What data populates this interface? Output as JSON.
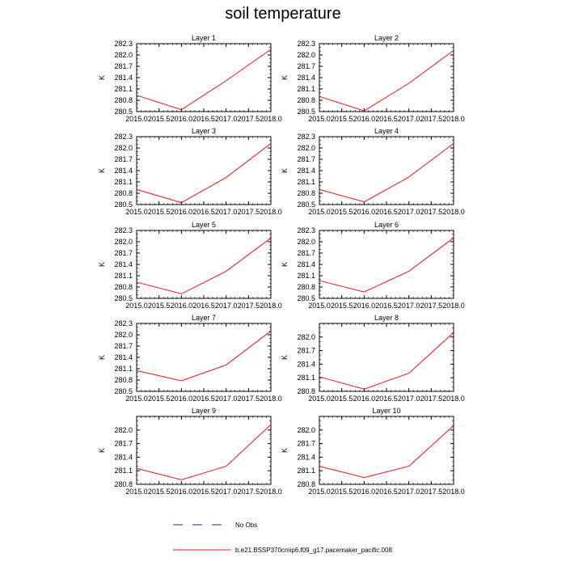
{
  "figure": {
    "title": "soil temperature"
  },
  "legend": {
    "entries": [
      {
        "label": "No Obs",
        "style": "dashed",
        "color": "#1e2a7a"
      },
      {
        "label": "b.e21.BSSP370cmip6.f09_g17.pacemaker_pacific.008",
        "style": "solid",
        "color": "#e8141b"
      }
    ]
  },
  "chart_data": [
    {
      "type": "line",
      "title": "Layer 1",
      "xlabel": "",
      "ylabel": "K",
      "xlim": [
        2015.0,
        2018.0
      ],
      "ylim": [
        280.5,
        282.3
      ],
      "xticks": [
        "2015.0",
        "2015.5",
        "2016.0",
        "2016.5",
        "2017.0",
        "2017.5",
        "2018.0"
      ],
      "yticks": [
        "280.5",
        "280.8",
        "281.1",
        "281.4",
        "281.7",
        "282.0",
        "282.3"
      ],
      "series": [
        {
          "x": [
            2015,
            2016,
            2017,
            2018
          ],
          "y": [
            280.93,
            280.55,
            281.32,
            282.15
          ],
          "color": "#e8141b"
        }
      ]
    },
    {
      "type": "line",
      "title": "Layer 2",
      "xlabel": "",
      "ylabel": "K",
      "xlim": [
        2015.0,
        2018.0
      ],
      "ylim": [
        280.5,
        282.3
      ],
      "xticks": [
        "2015.0",
        "2015.5",
        "2016.0",
        "2016.5",
        "2017.0",
        "2017.5",
        "2018.0"
      ],
      "yticks": [
        "280.5",
        "280.8",
        "281.1",
        "281.4",
        "281.7",
        "282.0",
        "282.3"
      ],
      "series": [
        {
          "x": [
            2015,
            2016,
            2017,
            2018
          ],
          "y": [
            280.9,
            280.52,
            281.25,
            282.12
          ],
          "color": "#e8141b"
        }
      ]
    },
    {
      "type": "line",
      "title": "Layer 3",
      "xlabel": "",
      "ylabel": "K",
      "xlim": [
        2015.0,
        2018.0
      ],
      "ylim": [
        280.5,
        282.3
      ],
      "xticks": [
        "2015.0",
        "2015.5",
        "2016.0",
        "2016.5",
        "2017.0",
        "2017.5",
        "2018.0"
      ],
      "yticks": [
        "280.5",
        "280.8",
        "281.1",
        "281.4",
        "281.7",
        "282.0",
        "282.3"
      ],
      "series": [
        {
          "x": [
            2015,
            2016,
            2017,
            2018
          ],
          "y": [
            280.9,
            280.55,
            281.22,
            282.12
          ],
          "color": "#e8141b"
        }
      ]
    },
    {
      "type": "line",
      "title": "Layer 4",
      "xlabel": "",
      "ylabel": "K",
      "xlim": [
        2015.0,
        2018.0
      ],
      "ylim": [
        280.5,
        282.3
      ],
      "xticks": [
        "2015.0",
        "2015.5",
        "2016.0",
        "2016.5",
        "2017.0",
        "2017.5",
        "2018.0"
      ],
      "yticks": [
        "280.5",
        "280.8",
        "281.1",
        "281.4",
        "281.7",
        "282.0",
        "282.3"
      ],
      "series": [
        {
          "x": [
            2015,
            2016,
            2017,
            2018
          ],
          "y": [
            280.9,
            280.57,
            281.23,
            282.12
          ],
          "color": "#e8141b"
        }
      ]
    },
    {
      "type": "line",
      "title": "Layer 5",
      "xlabel": "",
      "ylabel": "K",
      "xlim": [
        2015.0,
        2018.0
      ],
      "ylim": [
        280.5,
        282.3
      ],
      "xticks": [
        "2015.0",
        "2015.5",
        "2016.0",
        "2016.5",
        "2017.0",
        "2017.5",
        "2018.0"
      ],
      "yticks": [
        "280.5",
        "280.8",
        "281.1",
        "281.4",
        "281.7",
        "282.0",
        "282.3"
      ],
      "series": [
        {
          "x": [
            2015,
            2016,
            2017,
            2018
          ],
          "y": [
            280.93,
            280.62,
            281.22,
            282.1
          ],
          "color": "#e8141b"
        }
      ]
    },
    {
      "type": "line",
      "title": "Layer 6",
      "xlabel": "",
      "ylabel": "K",
      "xlim": [
        2015.0,
        2018.0
      ],
      "ylim": [
        280.5,
        282.3
      ],
      "xticks": [
        "2015.0",
        "2015.5",
        "2016.0",
        "2016.5",
        "2017.0",
        "2017.5",
        "2018.0"
      ],
      "yticks": [
        "280.5",
        "280.8",
        "281.1",
        "281.4",
        "281.7",
        "282.0",
        "282.3"
      ],
      "series": [
        {
          "x": [
            2015,
            2016,
            2017,
            2018
          ],
          "y": [
            280.97,
            280.67,
            281.22,
            282.1
          ],
          "color": "#e8141b"
        }
      ]
    },
    {
      "type": "line",
      "title": "Layer 7",
      "xlabel": "",
      "ylabel": "K",
      "xlim": [
        2015.0,
        2018.0
      ],
      "ylim": [
        280.5,
        282.3
      ],
      "xticks": [
        "2015.0",
        "2015.5",
        "2016.0",
        "2016.5",
        "2017.0",
        "2017.5",
        "2018.0"
      ],
      "yticks": [
        "280.5",
        "280.8",
        "281.1",
        "281.4",
        "281.7",
        "282.0",
        "282.3"
      ],
      "series": [
        {
          "x": [
            2015,
            2016,
            2017,
            2018
          ],
          "y": [
            281.05,
            280.78,
            281.2,
            282.1
          ],
          "color": "#e8141b"
        }
      ]
    },
    {
      "type": "line",
      "title": "Layer 8",
      "xlabel": "",
      "ylabel": "K",
      "xlim": [
        2015.0,
        2018.0
      ],
      "ylim": [
        280.8,
        282.3
      ],
      "xticks": [
        "2015.0",
        "2015.5",
        "2016.0",
        "2016.5",
        "2017.0",
        "2017.5",
        "2018.0"
      ],
      "yticks": [
        "280.8",
        "281.1",
        "281.4",
        "281.7",
        "282.0"
      ],
      "series": [
        {
          "x": [
            2015,
            2016,
            2017,
            2018
          ],
          "y": [
            281.12,
            280.85,
            281.2,
            282.1
          ],
          "color": "#e8141b"
        }
      ]
    },
    {
      "type": "line",
      "title": "Layer 9",
      "xlabel": "",
      "ylabel": "K",
      "xlim": [
        2015.0,
        2018.0
      ],
      "ylim": [
        280.8,
        282.3
      ],
      "xticks": [
        "2015.0",
        "2015.5",
        "2016.0",
        "2016.5",
        "2017.0",
        "2017.5",
        "2018.0"
      ],
      "yticks": [
        "280.8",
        "281.1",
        "281.4",
        "281.7",
        "282.0"
      ],
      "series": [
        {
          "x": [
            2015,
            2016,
            2017,
            2018
          ],
          "y": [
            281.15,
            280.9,
            281.2,
            282.12
          ],
          "color": "#e8141b"
        }
      ]
    },
    {
      "type": "line",
      "title": "Layer 10",
      "xlabel": "",
      "ylabel": "K",
      "xlim": [
        2015.0,
        2018.0
      ],
      "ylim": [
        280.8,
        282.3
      ],
      "xticks": [
        "2015.0",
        "2015.5",
        "2016.0",
        "2016.5",
        "2017.0",
        "2017.5",
        "2018.0"
      ],
      "yticks": [
        "280.8",
        "281.1",
        "281.4",
        "281.7",
        "282.0"
      ],
      "series": [
        {
          "x": [
            2015,
            2016,
            2017,
            2018
          ],
          "y": [
            281.2,
            280.95,
            281.2,
            282.1
          ],
          "color": "#e8141b"
        }
      ]
    }
  ]
}
